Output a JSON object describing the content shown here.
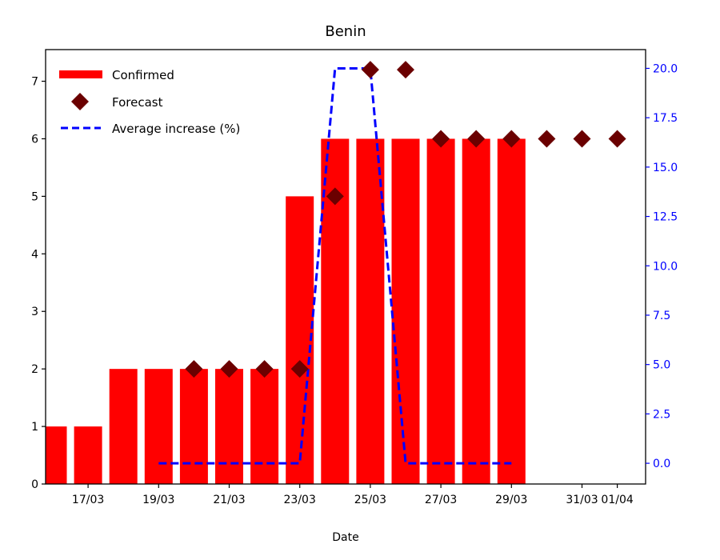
{
  "chart_data": {
    "type": "bar",
    "title": "Benin",
    "xlabel": "Date",
    "ylabel": "",
    "y2label": "",
    "ylim": [
      0,
      7.55
    ],
    "y2lim": [
      -1.05,
      20.95
    ],
    "yticks": [
      0,
      1,
      2,
      3,
      4,
      5,
      6,
      7
    ],
    "y2ticks": [
      "0.0",
      "2.5",
      "5.0",
      "7.5",
      "10.0",
      "12.5",
      "15.0",
      "17.5",
      "20.0"
    ],
    "x_dates": [
      "16/03",
      "17/03",
      "18/03",
      "19/03",
      "20/03",
      "21/03",
      "22/03",
      "23/03",
      "24/03",
      "25/03",
      "26/03",
      "27/03",
      "28/03",
      "29/03",
      "30/03",
      "31/03",
      "01/04"
    ],
    "xtick_labels": [
      {
        "date": "17/03",
        "label": "17/03"
      },
      {
        "date": "19/03",
        "label": "19/03"
      },
      {
        "date": "21/03",
        "label": "21/03"
      },
      {
        "date": "23/03",
        "label": "23/03"
      },
      {
        "date": "25/03",
        "label": "25/03"
      },
      {
        "date": "27/03",
        "label": "27/03"
      },
      {
        "date": "29/03",
        "label": "29/03"
      },
      {
        "date": "31/03",
        "label": "31/03"
      },
      {
        "date": "01/04",
        "label": "01/04"
      }
    ],
    "series": [
      {
        "name": "Confirmed",
        "type": "bar",
        "axis": "left",
        "color": "#ff0000",
        "x": [
          "16/03",
          "17/03",
          "18/03",
          "19/03",
          "20/03",
          "21/03",
          "22/03",
          "23/03",
          "24/03",
          "25/03",
          "26/03",
          "27/03",
          "28/03",
          "29/03"
        ],
        "values": [
          1,
          1,
          2,
          2,
          2,
          2,
          2,
          5,
          6,
          6,
          6,
          6,
          6,
          6
        ]
      },
      {
        "name": "Forecast",
        "type": "scatter",
        "marker": "diamond",
        "axis": "left",
        "color": "#6b0000",
        "x": [
          "20/03",
          "21/03",
          "22/03",
          "23/03",
          "24/03",
          "25/03",
          "26/03",
          "27/03",
          "28/03",
          "29/03",
          "30/03",
          "31/03",
          "01/04"
        ],
        "values": [
          2,
          2,
          2,
          2,
          5,
          7.2,
          7.2,
          6,
          6,
          6,
          6,
          6,
          6
        ]
      },
      {
        "name": "Average increase (%)",
        "type": "line",
        "dash": true,
        "axis": "right",
        "color": "#0000ff",
        "x": [
          "19/03",
          "20/03",
          "21/03",
          "22/03",
          "23/03",
          "24/03",
          "25/03",
          "26/03",
          "27/03",
          "28/03",
          "29/03"
        ],
        "values": [
          0,
          0,
          0,
          0,
          0,
          20,
          20,
          0,
          0,
          0,
          0
        ]
      }
    ],
    "legend": {
      "placement": "top-left"
    }
  }
}
